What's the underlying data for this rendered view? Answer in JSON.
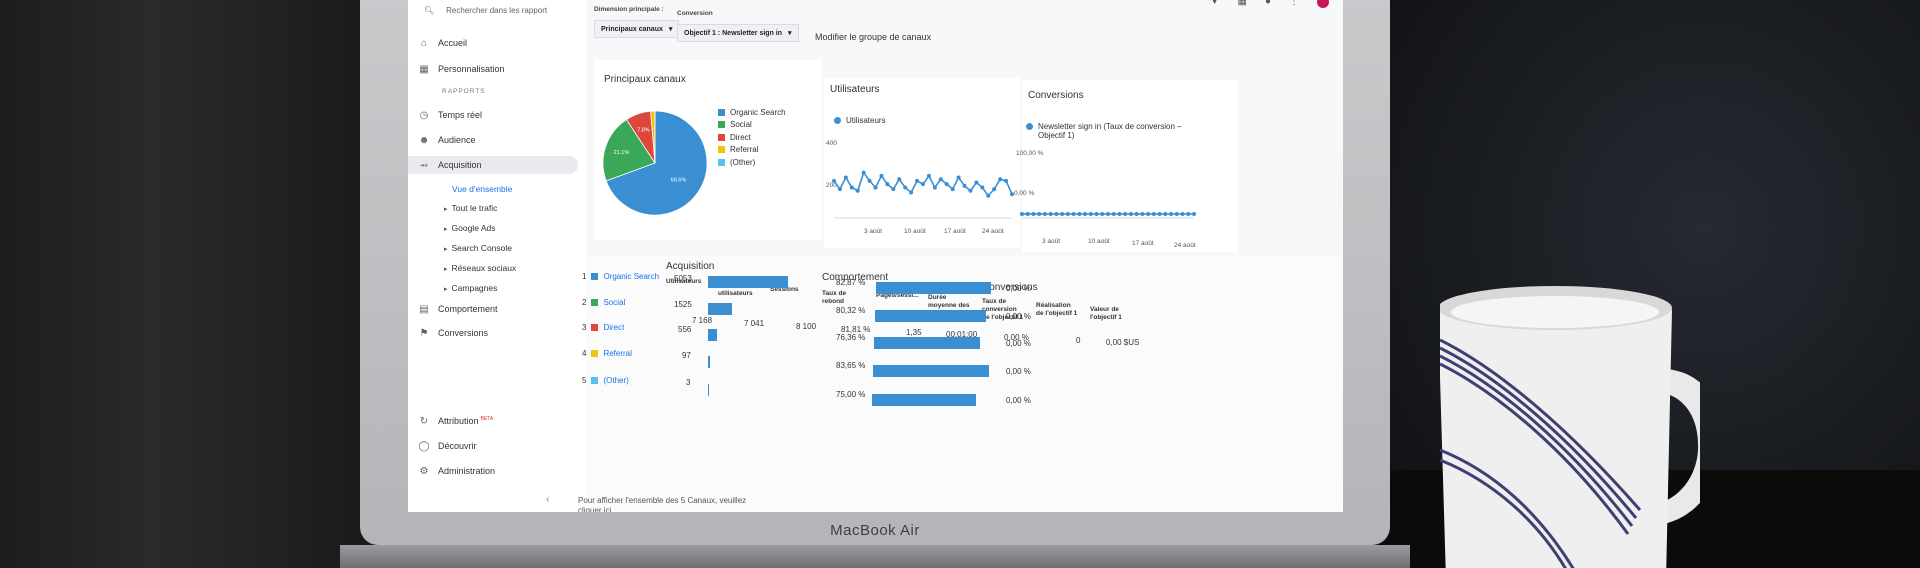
{
  "sidebar": {
    "search_placeholder": "Rechercher dans les rapport",
    "items": [
      {
        "label": "Accueil",
        "icon": "home-icon"
      },
      {
        "label": "Personnalisation",
        "icon": "dashboard-icon"
      }
    ],
    "section_label": "RAPPORTS",
    "reports": [
      {
        "label": "Temps réel",
        "icon": "clock-icon"
      },
      {
        "label": "Audience",
        "icon": "person-icon"
      },
      {
        "label": "Acquisition",
        "icon": "acquisition-icon"
      }
    ],
    "acquisition_sub": [
      "Vue d'ensemble",
      "Tout le trafic",
      "Google Ads",
      "Search Console",
      "Réseaux sociaux",
      "Campagnes"
    ],
    "more": [
      {
        "label": "Comportement",
        "icon": "behavior-icon"
      },
      {
        "label": "Conversions",
        "icon": "flag-icon"
      }
    ],
    "bottom": [
      {
        "label": "Attribution",
        "badge": "BETA",
        "icon": "attribution-icon"
      },
      {
        "label": "Découvrir",
        "icon": "lightbulb-icon"
      },
      {
        "label": "Administration",
        "icon": "gear-icon"
      }
    ],
    "collapse": "‹"
  },
  "toolbar": {
    "primary_dimension_label": "Dimension principale :",
    "primary_dimension_value": "Principaux canaux",
    "conversion_label": "Conversion",
    "conversion_value": "Objectif 1 : Newsletter sign in",
    "edit_group": "Modifier le groupe de canaux"
  },
  "charts": {
    "channels_title": "Principaux canaux",
    "legend": [
      {
        "name": "Organic Search",
        "color": "#3a8fd3"
      },
      {
        "name": "Social",
        "color": "#3aa857"
      },
      {
        "name": "Direct",
        "color": "#e0473c"
      },
      {
        "name": "Referral",
        "color": "#f4c20d"
      },
      {
        "name": "(Other)",
        "color": "#5bc0eb"
      }
    ],
    "pie_labels": [
      "68.6%",
      "21.1%",
      "7.8%"
    ],
    "users_title": "Utilisateurs",
    "users_series": "Utilisateurs",
    "users_yticks": [
      "400",
      "200"
    ],
    "users_xticks": [
      "3 août",
      "10 août",
      "17 août",
      "24 août"
    ],
    "conv_title": "Conversions",
    "conv_series": "Newsletter sign in (Taux de conversion – Objectif 1)",
    "conv_yticks": [
      "100,00 %",
      "0,00 %"
    ],
    "conv_xticks": [
      "3 août",
      "10 août",
      "17 août",
      "24 août"
    ]
  },
  "chart_data": [
    {
      "type": "pie",
      "title": "Principaux canaux",
      "categories": [
        "Organic Search",
        "Social",
        "Direct",
        "Referral",
        "(Other)"
      ],
      "values": [
        68.6,
        21.1,
        7.8,
        1.3,
        0.04
      ]
    },
    {
      "type": "line",
      "title": "Utilisateurs",
      "series": [
        {
          "name": "Utilisateurs",
          "values": [
            300,
            250,
            320,
            260,
            240,
            350,
            300,
            260,
            330,
            280,
            250,
            310,
            260,
            230,
            300,
            280,
            330,
            260,
            310,
            280,
            250,
            320,
            270,
            240,
            290,
            260,
            210,
            250,
            310,
            300,
            220
          ]
        }
      ],
      "ylim": [
        100,
        450
      ],
      "xticks": [
        "3 août",
        "10 août",
        "17 août",
        "24 août"
      ]
    },
    {
      "type": "line",
      "title": "Conversions",
      "series": [
        {
          "name": "Newsletter sign in (Taux de conversion – Objectif 1)",
          "values": [
            0.04,
            0.03,
            0.03,
            0.03,
            0.02,
            0.02,
            0.02,
            0.02,
            0.02,
            0.02,
            0.02,
            0.02,
            0.02,
            0.01,
            0.01,
            0.01,
            0.01,
            0.01,
            0.01,
            0.01,
            0.01,
            0.0,
            0.0,
            0.0,
            0.0,
            0.0,
            0.0,
            0.0,
            0.0,
            0.0,
            0.0
          ]
        }
      ],
      "ylim": [
        0,
        100
      ],
      "xticks": [
        "3 août",
        "10 août",
        "17 août",
        "24 août"
      ]
    }
  ],
  "table": {
    "acq_title": "Acquisition",
    "beh_title": "Comportement",
    "conv_title": "Conversions",
    "acq_headers": [
      "Utilisateurs",
      "Nouveaux utilisateurs",
      "Sessions"
    ],
    "beh_headers": [
      "Taux de rebond",
      "Pages/sessi...",
      "Durée moyenne des sessions"
    ],
    "conv_headers": [
      "Taux de conversion de l'objectif 1",
      "Réalisation de l'objectif 1",
      "Valeur de l'objectif 1"
    ],
    "totals": {
      "users": "7 168",
      "new_users": "7 041",
      "sessions": "8 100",
      "bounce": "81,81 %",
      "pages": "1,35",
      "duration": "00:01:00",
      "conv_rate": "0,00 %",
      "completions": "0",
      "value": "0,00 $US"
    },
    "rows": [
      {
        "num": "1",
        "channel": "Organic Search",
        "color": "#3a8fd3",
        "users": "5053",
        "users_pct": 70.5,
        "bounce": "82,87 %",
        "bounce_pct": 82.87,
        "conv": "0,00 %"
      },
      {
        "num": "2",
        "channel": "Social",
        "color": "#3aa857",
        "users": "1525",
        "users_pct": 21.3,
        "bounce": "80,32 %",
        "bounce_pct": 80.32,
        "conv": "0,00 %"
      },
      {
        "num": "3",
        "channel": "Direct",
        "color": "#e0473c",
        "users": "556",
        "users_pct": 7.8,
        "bounce": "76,36 %",
        "bounce_pct": 76.36,
        "conv": "0,00 %"
      },
      {
        "num": "4",
        "channel": "Referral",
        "color": "#f4c20d",
        "users": "97",
        "users_pct": 1.4,
        "bounce": "83,65 %",
        "bounce_pct": 83.65,
        "conv": "0,00 %"
      },
      {
        "num": "5",
        "channel": "(Other)",
        "color": "#5bc0eb",
        "users": "3",
        "users_pct": 0.04,
        "bounce": "75,00 %",
        "bounce_pct": 75.0,
        "conv": "0,00 %"
      }
    ],
    "footer": "Pour afficher l'ensemble des 5 Canaux, veuillez cliquer ici."
  },
  "device": {
    "brand": "MacBook Air"
  }
}
